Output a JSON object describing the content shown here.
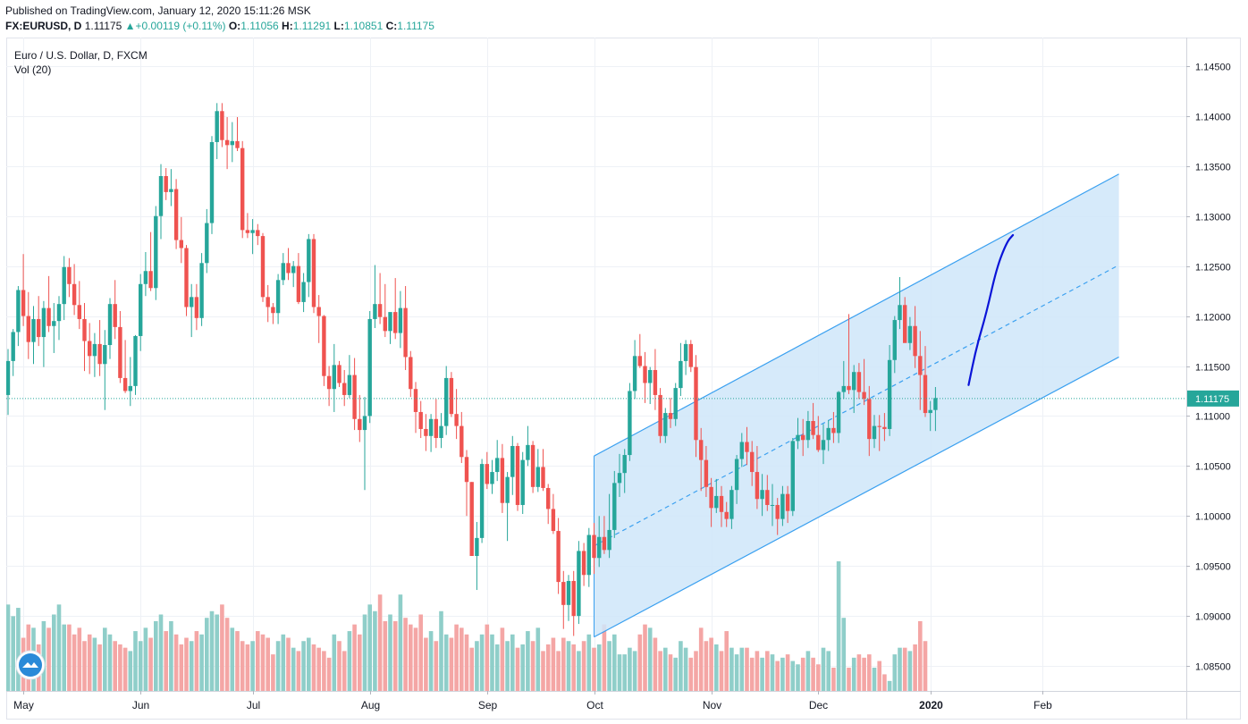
{
  "header": {
    "published": "Published on TradingView.com, January 12, 2020 15:11:26 MSK",
    "symbol": "FX:EURUSD, D",
    "last": "1.11175",
    "change": "+0.00119 (+0.11%)",
    "open_label": "O:",
    "open": "1.11056",
    "high_label": "H:",
    "high": "1.11291",
    "low_label": "L:",
    "low": "1.10851",
    "close_label": "C:",
    "close": "1.11175"
  },
  "legend": {
    "instrument": "Euro / U.S. Dollar, D, FXCM",
    "volume": "Vol (20)"
  },
  "colors": {
    "up": "#26a69a",
    "down": "#ef5350",
    "up_vol": "#8fcec9",
    "down_vol": "#f4a6a5",
    "channel_fill": "#cfe6f9",
    "channel_line": "#3aa0f0",
    "projection": "#0a14d8",
    "grid": "#eef1f6"
  },
  "icons": {
    "logo": "tradingview-logo-icon",
    "change_arrow": "triangle-up-icon"
  },
  "chart_data": {
    "type": "candlestick",
    "title": "Euro / U.S. Dollar, D, FXCM",
    "ylim": [
      1.0825,
      1.1475
    ],
    "yticks": [
      "1.14500",
      "1.14000",
      "1.13500",
      "1.13000",
      "1.12500",
      "1.12000",
      "1.11500",
      "1.11000",
      "1.10500",
      "1.10000",
      "1.09500",
      "1.09000",
      "1.08500"
    ],
    "xticks": [
      {
        "label": "May",
        "index": 3
      },
      {
        "label": "Jun",
        "index": 26
      },
      {
        "label": "Jul",
        "index": 48
      },
      {
        "label": "Aug",
        "index": 71
      },
      {
        "label": "Sep",
        "index": 94
      },
      {
        "label": "Oct",
        "index": 115
      },
      {
        "label": "Nov",
        "index": 138
      },
      {
        "label": "Dec",
        "index": 159
      },
      {
        "label": "2020",
        "index": 181,
        "bold": true
      },
      {
        "label": "Feb",
        "index": 203
      }
    ],
    "last_price": 1.11175,
    "last_price_label": "1.11175",
    "candles": [
      [
        1.1121,
        1.1167,
        1.1101,
        1.1155
      ],
      [
        1.1155,
        1.1187,
        1.114,
        1.1184
      ],
      [
        1.1184,
        1.123,
        1.117,
        1.1226
      ],
      [
        1.1226,
        1.1262,
        1.119,
        1.12
      ],
      [
        1.12,
        1.1224,
        1.1157,
        1.1174
      ],
      [
        1.1174,
        1.121,
        1.1152,
        1.1197
      ],
      [
        1.1197,
        1.122,
        1.117,
        1.1179
      ],
      [
        1.1179,
        1.1215,
        1.1149,
        1.1208
      ],
      [
        1.1208,
        1.124,
        1.1184,
        1.119
      ],
      [
        1.119,
        1.1213,
        1.1163,
        1.1195
      ],
      [
        1.1195,
        1.122,
        1.1176,
        1.1212
      ],
      [
        1.1212,
        1.126,
        1.1196,
        1.1249
      ],
      [
        1.1249,
        1.1258,
        1.1219,
        1.1232
      ],
      [
        1.1232,
        1.1252,
        1.1201,
        1.1211
      ],
      [
        1.1211,
        1.1235,
        1.1187,
        1.1197
      ],
      [
        1.1197,
        1.1213,
        1.1145,
        1.1175
      ],
      [
        1.1175,
        1.1193,
        1.1142,
        1.116
      ],
      [
        1.116,
        1.1183,
        1.1139,
        1.1172
      ],
      [
        1.1172,
        1.1196,
        1.114,
        1.1152
      ],
      [
        1.1152,
        1.1186,
        1.1106,
        1.1171
      ],
      [
        1.1171,
        1.1218,
        1.1157,
        1.1212
      ],
      [
        1.1212,
        1.1236,
        1.1177,
        1.1189
      ],
      [
        1.1189,
        1.1205,
        1.1133,
        1.1138
      ],
      [
        1.1138,
        1.1176,
        1.1123,
        1.1125
      ],
      [
        1.1125,
        1.1159,
        1.111,
        1.113
      ],
      [
        1.113,
        1.1181,
        1.1121,
        1.118
      ],
      [
        1.118,
        1.1242,
        1.1165,
        1.1232
      ],
      [
        1.1232,
        1.1264,
        1.122,
        1.1245
      ],
      [
        1.1245,
        1.1284,
        1.1225,
        1.1228
      ],
      [
        1.1228,
        1.131,
        1.1216,
        1.13
      ],
      [
        1.13,
        1.1352,
        1.1277,
        1.134
      ],
      [
        1.134,
        1.1348,
        1.1316,
        1.1324
      ],
      [
        1.1324,
        1.1347,
        1.131,
        1.1327
      ],
      [
        1.1327,
        1.1337,
        1.1267,
        1.1276
      ],
      [
        1.1276,
        1.1299,
        1.1253,
        1.1268
      ],
      [
        1.1268,
        1.1271,
        1.12,
        1.1209
      ],
      [
        1.1209,
        1.1232,
        1.1179,
        1.1219
      ],
      [
        1.1219,
        1.1232,
        1.1186,
        1.1198
      ],
      [
        1.1198,
        1.1263,
        1.119,
        1.1253
      ],
      [
        1.1253,
        1.1307,
        1.1243,
        1.1293
      ],
      [
        1.1293,
        1.138,
        1.1282,
        1.1374
      ],
      [
        1.1374,
        1.1413,
        1.1357,
        1.1405
      ],
      [
        1.1405,
        1.1413,
        1.1369,
        1.1376
      ],
      [
        1.1376,
        1.1399,
        1.1347,
        1.1371
      ],
      [
        1.1371,
        1.1394,
        1.1354,
        1.1375
      ],
      [
        1.1375,
        1.1399,
        1.1365,
        1.1368
      ],
      [
        1.1368,
        1.1375,
        1.1278,
        1.1286
      ],
      [
        1.1286,
        1.1303,
        1.1278,
        1.1283
      ],
      [
        1.1283,
        1.1297,
        1.1262,
        1.1286
      ],
      [
        1.1286,
        1.1292,
        1.1271,
        1.128
      ],
      [
        1.128,
        1.1283,
        1.1214,
        1.1219
      ],
      [
        1.1219,
        1.1231,
        1.1194,
        1.1209
      ],
      [
        1.1209,
        1.1213,
        1.1192,
        1.1203
      ],
      [
        1.1203,
        1.1242,
        1.1192,
        1.1236
      ],
      [
        1.1236,
        1.1263,
        1.1231,
        1.1253
      ],
      [
        1.1253,
        1.1268,
        1.1236,
        1.1243
      ],
      [
        1.1243,
        1.1255,
        1.1229,
        1.125
      ],
      [
        1.125,
        1.1263,
        1.1212,
        1.1214
      ],
      [
        1.1214,
        1.1243,
        1.1204,
        1.1234
      ],
      [
        1.1234,
        1.1282,
        1.1219,
        1.1277
      ],
      [
        1.1277,
        1.1282,
        1.1203,
        1.1209
      ],
      [
        1.1209,
        1.1221,
        1.1173,
        1.12
      ],
      [
        1.12,
        1.1201,
        1.113,
        1.114
      ],
      [
        1.114,
        1.115,
        1.111,
        1.1127
      ],
      [
        1.1127,
        1.1172,
        1.1104,
        1.1151
      ],
      [
        1.1151,
        1.1155,
        1.1129,
        1.1133
      ],
      [
        1.1133,
        1.1146,
        1.111,
        1.1121
      ],
      [
        1.1121,
        1.1161,
        1.1118,
        1.1141
      ],
      [
        1.1141,
        1.1158,
        1.1086,
        1.1097
      ],
      [
        1.1097,
        1.1121,
        1.1074,
        1.1086
      ],
      [
        1.1086,
        1.1119,
        1.1026,
        1.11
      ],
      [
        1.11,
        1.1205,
        1.1093,
        1.1197
      ],
      [
        1.1197,
        1.1251,
        1.1188,
        1.1212
      ],
      [
        1.1212,
        1.1243,
        1.1192,
        1.1199
      ],
      [
        1.1199,
        1.1232,
        1.1179,
        1.1185
      ],
      [
        1.1185,
        1.1203,
        1.1172,
        1.1204
      ],
      [
        1.1204,
        1.1238,
        1.1177,
        1.1183
      ],
      [
        1.1183,
        1.1225,
        1.1168,
        1.1208
      ],
      [
        1.1208,
        1.123,
        1.1146,
        1.1159
      ],
      [
        1.1159,
        1.1165,
        1.1119,
        1.1127
      ],
      [
        1.1127,
        1.1134,
        1.1083,
        1.1104
      ],
      [
        1.1104,
        1.1115,
        1.1078,
        1.1087
      ],
      [
        1.1087,
        1.1102,
        1.1065,
        1.108
      ],
      [
        1.108,
        1.1102,
        1.1064,
        1.1097
      ],
      [
        1.1097,
        1.1117,
        1.1068,
        1.1078
      ],
      [
        1.1078,
        1.1103,
        1.1068,
        1.109
      ],
      [
        1.109,
        1.115,
        1.1081,
        1.1138
      ],
      [
        1.1138,
        1.1144,
        1.1099,
        1.1102
      ],
      [
        1.1102,
        1.1127,
        1.1077,
        1.109
      ],
      [
        1.109,
        1.1104,
        1.1053,
        1.1059
      ],
      [
        1.1059,
        1.1066,
        1.1,
        1.1034
      ],
      [
        1.1034,
        1.1034,
        1.096,
        1.096
      ],
      [
        1.096,
        1.0994,
        1.0926,
        1.0978
      ],
      [
        1.0978,
        1.1057,
        1.0973,
        1.1052
      ],
      [
        1.1052,
        1.1064,
        1.1027,
        1.1032
      ],
      [
        1.1032,
        1.1056,
        1.1022,
        1.1044
      ],
      [
        1.1044,
        1.1076,
        1.1035,
        1.1058
      ],
      [
        1.1058,
        1.1072,
        1.1003,
        1.1013
      ],
      [
        1.1013,
        1.1044,
        1.0975,
        1.1039
      ],
      [
        1.1039,
        1.108,
        1.1021,
        1.107
      ],
      [
        1.107,
        1.1073,
        1.1005,
        1.1011
      ],
      [
        1.1011,
        1.1064,
        1.1002,
        1.1056
      ],
      [
        1.1056,
        1.109,
        1.105,
        1.1071
      ],
      [
        1.1071,
        1.1075,
        1.1023,
        1.1029
      ],
      [
        1.1029,
        1.1067,
        1.1024,
        1.1049
      ],
      [
        1.1049,
        1.1067,
        1.1025,
        1.1028
      ],
      [
        1.1028,
        1.1032,
        1.0992,
        1.1007
      ],
      [
        1.1007,
        1.1022,
        1.0982,
        1.0985
      ],
      [
        1.0985,
        1.0998,
        1.0922,
        1.0934
      ],
      [
        1.0934,
        1.0945,
        1.0887,
        1.0911
      ],
      [
        1.0911,
        1.0941,
        1.0895,
        1.0935
      ],
      [
        1.0935,
        1.0945,
        1.088,
        1.09
      ],
      [
        1.09,
        1.0975,
        1.0892,
        1.0965
      ],
      [
        1.0965,
        1.0973,
        1.093,
        1.0941
      ],
      [
        1.0941,
        1.0988,
        1.0929,
        1.0981
      ],
      [
        1.0981,
        1.0993,
        1.0942,
        1.0958
      ],
      [
        1.0958,
        1.1,
        1.0949,
        1.0979
      ],
      [
        1.0979,
        1.1,
        1.0962,
        1.0966
      ],
      [
        1.0966,
        1.1022,
        1.0958,
        1.0986
      ],
      [
        1.0986,
        1.1045,
        1.0978,
        1.1033
      ],
      [
        1.1033,
        1.1062,
        1.1019,
        1.1043
      ],
      [
        1.1043,
        1.1067,
        1.1023,
        1.1061
      ],
      [
        1.1061,
        1.1133,
        1.1055,
        1.1125
      ],
      [
        1.1125,
        1.1176,
        1.1117,
        1.116
      ],
      [
        1.116,
        1.1182,
        1.1148,
        1.115
      ],
      [
        1.115,
        1.1164,
        1.1113,
        1.1133
      ],
      [
        1.1133,
        1.1149,
        1.1112,
        1.1146
      ],
      [
        1.1146,
        1.1167,
        1.1106,
        1.1121
      ],
      [
        1.1121,
        1.1128,
        1.1073,
        1.108
      ],
      [
        1.108,
        1.1108,
        1.1073,
        1.1103
      ],
      [
        1.1103,
        1.1118,
        1.1088,
        1.1097
      ],
      [
        1.1097,
        1.1133,
        1.109,
        1.1128
      ],
      [
        1.1128,
        1.1173,
        1.112,
        1.1155
      ],
      [
        1.1155,
        1.1176,
        1.1141,
        1.1172
      ],
      [
        1.1172,
        1.1176,
        1.1144,
        1.1149
      ],
      [
        1.1149,
        1.1161,
        1.1059,
        1.1076
      ],
      [
        1.1076,
        1.1088,
        1.1025,
        1.1056
      ],
      [
        1.1056,
        1.107,
        1.1019,
        1.1029
      ],
      [
        1.1029,
        1.1038,
        1.0989,
        1.1008
      ],
      [
        1.1008,
        1.1037,
        1.1003,
        1.102
      ],
      [
        1.102,
        1.103,
        1.0989,
        1.1004
      ],
      [
        1.1004,
        1.1014,
        1.0989,
        1.0997
      ],
      [
        1.0997,
        1.103,
        1.0987,
        1.1026
      ],
      [
        1.1026,
        1.1061,
        1.1012,
        1.1057
      ],
      [
        1.1057,
        1.1083,
        1.1049,
        1.1074
      ],
      [
        1.1074,
        1.1089,
        1.1051,
        1.1064
      ],
      [
        1.1064,
        1.1075,
        1.103,
        1.1044
      ],
      [
        1.1044,
        1.107,
        1.1007,
        1.1017
      ],
      [
        1.1017,
        1.1042,
        1.1,
        1.1026
      ],
      [
        1.1026,
        1.1041,
        1.1005,
        1.1011
      ],
      [
        1.1011,
        1.1032,
        1.099,
        1.1011
      ],
      [
        1.1011,
        1.1018,
        1.0981,
        1.0997
      ],
      [
        1.0997,
        1.103,
        1.099,
        1.1022
      ],
      [
        1.1022,
        1.103,
        1.0993,
        1.1005
      ],
      [
        1.1005,
        1.1078,
        1.1,
        1.1075
      ],
      [
        1.1075,
        1.1098,
        1.1067,
        1.1081
      ],
      [
        1.1081,
        1.1097,
        1.106,
        1.1076
      ],
      [
        1.1076,
        1.1105,
        1.1068,
        1.1095
      ],
      [
        1.1095,
        1.1113,
        1.1077,
        1.1081
      ],
      [
        1.1081,
        1.11,
        1.1064,
        1.1066
      ],
      [
        1.1066,
        1.1092,
        1.1052,
        1.1076
      ],
      [
        1.1076,
        1.1096,
        1.1065,
        1.1088
      ],
      [
        1.1088,
        1.1104,
        1.1073,
        1.1083
      ],
      [
        1.1083,
        1.1125,
        1.1073,
        1.1124
      ],
      [
        1.1124,
        1.1155,
        1.1117,
        1.113
      ],
      [
        1.113,
        1.1202,
        1.1122,
        1.1126
      ],
      [
        1.1126,
        1.1151,
        1.1103,
        1.1144
      ],
      [
        1.1144,
        1.1153,
        1.1117,
        1.1124
      ],
      [
        1.1124,
        1.1157,
        1.1111,
        1.1117
      ],
      [
        1.1117,
        1.113,
        1.106,
        1.1077
      ],
      [
        1.1077,
        1.1101,
        1.1068,
        1.109
      ],
      [
        1.109,
        1.1101,
        1.1065,
        1.1089
      ],
      [
        1.1089,
        1.1103,
        1.1075,
        1.1087
      ],
      [
        1.1087,
        1.1171,
        1.108,
        1.1156
      ],
      [
        1.1156,
        1.12,
        1.1143,
        1.1196
      ],
      [
        1.1196,
        1.1239,
        1.1187,
        1.1211
      ],
      [
        1.1211,
        1.1219,
        1.1174,
        1.1173
      ],
      [
        1.1173,
        1.1199,
        1.1166,
        1.119
      ],
      [
        1.119,
        1.121,
        1.1148,
        1.116
      ],
      [
        1.116,
        1.1185,
        1.1106,
        1.1141
      ],
      [
        1.1141,
        1.117,
        1.1099,
        1.1103
      ],
      [
        1.1103,
        1.1115,
        1.1085,
        1.1106
      ],
      [
        1.1106,
        1.1129,
        1.1085,
        1.1118
      ]
    ],
    "volume": [
      52,
      45,
      50,
      32,
      40,
      38,
      28,
      42,
      38,
      46,
      52,
      40,
      40,
      34,
      38,
      30,
      34,
      32,
      28,
      38,
      34,
      30,
      28,
      26,
      24,
      36,
      30,
      38,
      32,
      42,
      46,
      36,
      42,
      34,
      28,
      32,
      30,
      36,
      34,
      44,
      48,
      46,
      52,
      44,
      38,
      36,
      30,
      28,
      30,
      36,
      34,
      32,
      22,
      30,
      34,
      32,
      26,
      24,
      30,
      32,
      28,
      26,
      24,
      20,
      34,
      30,
      24,
      36,
      40,
      34,
      46,
      52,
      48,
      58,
      42,
      46,
      42,
      58,
      44,
      40,
      38,
      46,
      32,
      36,
      30,
      48,
      34,
      32,
      40,
      38,
      34,
      26,
      30,
      34,
      40,
      34,
      28,
      38,
      30,
      34,
      26,
      28,
      36,
      30,
      38,
      24,
      28,
      32,
      24,
      32,
      30,
      28,
      24,
      30,
      34,
      26,
      28,
      40,
      30,
      34,
      22,
      22,
      26,
      24,
      34,
      40,
      38,
      32,
      24,
      26,
      22,
      20,
      30,
      26,
      20,
      24,
      38,
      30,
      32,
      28,
      24,
      36,
      26,
      22,
      26,
      26,
      20,
      24,
      20,
      24,
      22,
      18,
      20,
      22,
      18,
      16,
      20,
      24,
      20,
      16,
      26,
      24,
      14,
      78,
      44,
      14,
      20,
      22,
      20,
      22,
      14,
      18,
      10,
      6,
      22,
      26,
      26,
      24,
      28,
      42,
      30
    ],
    "channel": {
      "upper": [
        {
          "index": 115,
          "price": 1.106
        },
        {
          "index": 218,
          "price": 1.1342
        }
      ],
      "middle": [
        {
          "index": 115,
          "price": 1.097
        },
        {
          "index": 218,
          "price": 1.1251
        }
      ],
      "lower": [
        {
          "index": 115,
          "price": 1.0879
        },
        {
          "index": 218,
          "price": 1.1159
        }
      ]
    },
    "projection": [
      {
        "index": 188.5,
        "price": 1.1131
      },
      {
        "index": 190,
        "price": 1.1168
      },
      {
        "index": 192,
        "price": 1.1203
      },
      {
        "index": 194,
        "price": 1.1248
      },
      {
        "index": 196,
        "price": 1.1274
      },
      {
        "index": 197.2,
        "price": 1.1281
      }
    ]
  }
}
